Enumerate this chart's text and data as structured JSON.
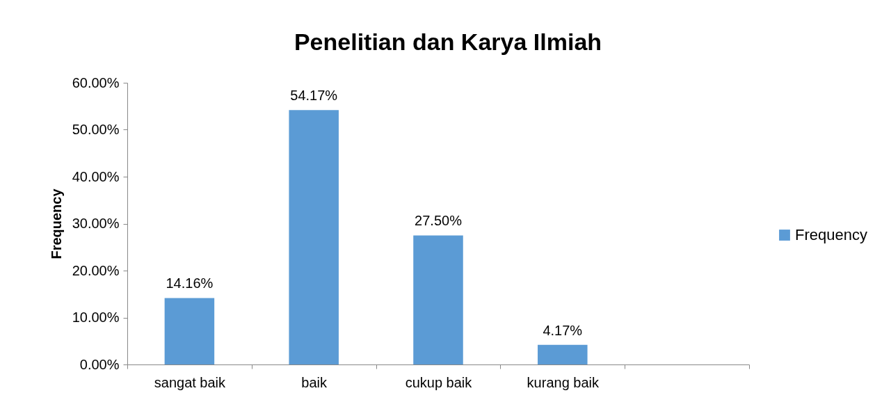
{
  "chart_data": {
    "type": "bar",
    "title": "Penelitian dan Karya Ilmiah",
    "ylabel": "Frequency",
    "categories": [
      "sangat baik",
      "baik",
      "cukup baik",
      "kurang baik",
      null
    ],
    "series": [
      {
        "name": "Frequency",
        "color": "#5b9bd5",
        "values": [
          14.16,
          54.17,
          27.5,
          4.17,
          null
        ],
        "value_labels": [
          "14.16%",
          "54.17%",
          "27.50%",
          "4.17%",
          null
        ]
      }
    ],
    "ylim": [
      0,
      60
    ],
    "yticks": [
      {
        "value": 0,
        "label": "0.00%"
      },
      {
        "value": 10,
        "label": "10.00%"
      },
      {
        "value": 20,
        "label": "20.00%"
      },
      {
        "value": 30,
        "label": "30.00%"
      },
      {
        "value": 40,
        "label": "40.00%"
      },
      {
        "value": 50,
        "label": "50.00%"
      },
      {
        "value": 60,
        "label": "60.00%"
      }
    ],
    "grid": false,
    "legend": "right"
  }
}
